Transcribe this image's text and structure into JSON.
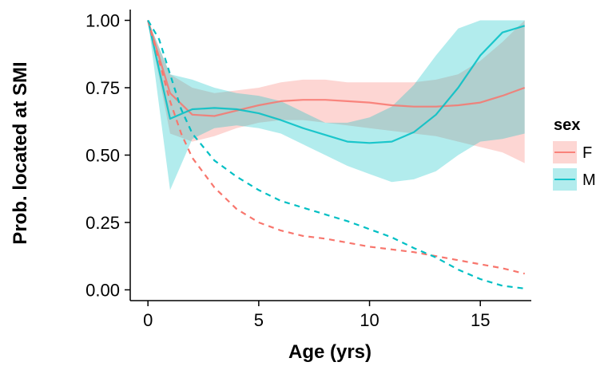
{
  "chart_data": {
    "type": "line",
    "xlabel": "Age (yrs)",
    "ylabel": "Prob. located at SMI",
    "xlim": [
      -0.8,
      17.3
    ],
    "ylim": [
      -0.04,
      1.04
    ],
    "x_ticks": [
      0,
      5,
      10,
      15
    ],
    "x_tick_labels": [
      "0",
      "5",
      "10",
      "15"
    ],
    "y_ticks": [
      0,
      0.25,
      0.5,
      0.75,
      1.0
    ],
    "y_tick_labels": [
      "0.00",
      "0.25",
      "0.50",
      "0.75",
      "1.00"
    ],
    "grid": false,
    "legend": {
      "title": "sex",
      "position": "right",
      "entries": [
        "F",
        "M"
      ]
    },
    "colors": {
      "F": "#F8766D",
      "M": "#00BFC4",
      "F_band": "#F8766D",
      "M_band": "#00BFC4"
    },
    "ribbons": [
      {
        "series": "F",
        "x": [
          0,
          1,
          2,
          3,
          4,
          5,
          6,
          7,
          8,
          9,
          10,
          11,
          12,
          13,
          14,
          15,
          16,
          17
        ],
        "lower": [
          1.0,
          0.58,
          0.55,
          0.57,
          0.6,
          0.62,
          0.63,
          0.63,
          0.62,
          0.61,
          0.6,
          0.59,
          0.58,
          0.57,
          0.55,
          0.53,
          0.51,
          0.47
        ],
        "upper": [
          1.0,
          0.8,
          0.75,
          0.73,
          0.74,
          0.75,
          0.77,
          0.78,
          0.78,
          0.77,
          0.77,
          0.77,
          0.77,
          0.78,
          0.8,
          0.85,
          0.92,
          1.0
        ]
      },
      {
        "series": "M",
        "x": [
          0,
          1,
          2,
          3,
          4,
          5,
          6,
          7,
          8,
          9,
          10,
          11,
          12,
          13,
          14,
          15,
          16,
          17
        ],
        "lower": [
          1.0,
          0.37,
          0.56,
          0.6,
          0.61,
          0.6,
          0.58,
          0.54,
          0.5,
          0.46,
          0.43,
          0.4,
          0.41,
          0.44,
          0.5,
          0.55,
          0.56,
          0.58
        ],
        "upper": [
          1.0,
          0.8,
          0.78,
          0.75,
          0.73,
          0.72,
          0.7,
          0.66,
          0.62,
          0.62,
          0.64,
          0.68,
          0.76,
          0.87,
          0.97,
          1.0,
          1.0,
          1.0
        ]
      }
    ],
    "series": [
      {
        "name": "F",
        "style": "solid",
        "x": [
          0,
          1,
          2,
          3,
          4,
          5,
          6,
          7,
          8,
          9,
          10,
          11,
          12,
          13,
          14,
          15,
          16,
          17
        ],
        "y": [
          1.0,
          0.73,
          0.65,
          0.645,
          0.665,
          0.685,
          0.7,
          0.705,
          0.705,
          0.7,
          0.695,
          0.685,
          0.68,
          0.68,
          0.685,
          0.695,
          0.72,
          0.75
        ]
      },
      {
        "name": "M",
        "style": "solid",
        "x": [
          0,
          1,
          2,
          3,
          4,
          5,
          6,
          7,
          8,
          9,
          10,
          11,
          12,
          13,
          14,
          15,
          16,
          17
        ],
        "y": [
          1.0,
          0.635,
          0.67,
          0.675,
          0.67,
          0.655,
          0.63,
          0.6,
          0.575,
          0.55,
          0.545,
          0.55,
          0.585,
          0.65,
          0.75,
          0.87,
          0.955,
          0.98
        ]
      },
      {
        "name": "F",
        "style": "dashed",
        "x": [
          0,
          0.5,
          1,
          1.5,
          2,
          3,
          4,
          5,
          6,
          7,
          8,
          9,
          10,
          11,
          12,
          13,
          14,
          15,
          16,
          17
        ],
        "y": [
          1.0,
          0.85,
          0.7,
          0.58,
          0.49,
          0.38,
          0.3,
          0.25,
          0.22,
          0.2,
          0.19,
          0.175,
          0.16,
          0.15,
          0.14,
          0.125,
          0.11,
          0.095,
          0.08,
          0.06
        ]
      },
      {
        "name": "M",
        "style": "dashed",
        "x": [
          0,
          0.5,
          1,
          1.5,
          2,
          3,
          4,
          5,
          6,
          7,
          8,
          9,
          10,
          11,
          12,
          13,
          14,
          15,
          16,
          17
        ],
        "y": [
          1.0,
          0.93,
          0.8,
          0.67,
          0.58,
          0.48,
          0.42,
          0.37,
          0.33,
          0.305,
          0.28,
          0.255,
          0.225,
          0.195,
          0.155,
          0.12,
          0.075,
          0.04,
          0.015,
          0.005
        ]
      }
    ]
  }
}
